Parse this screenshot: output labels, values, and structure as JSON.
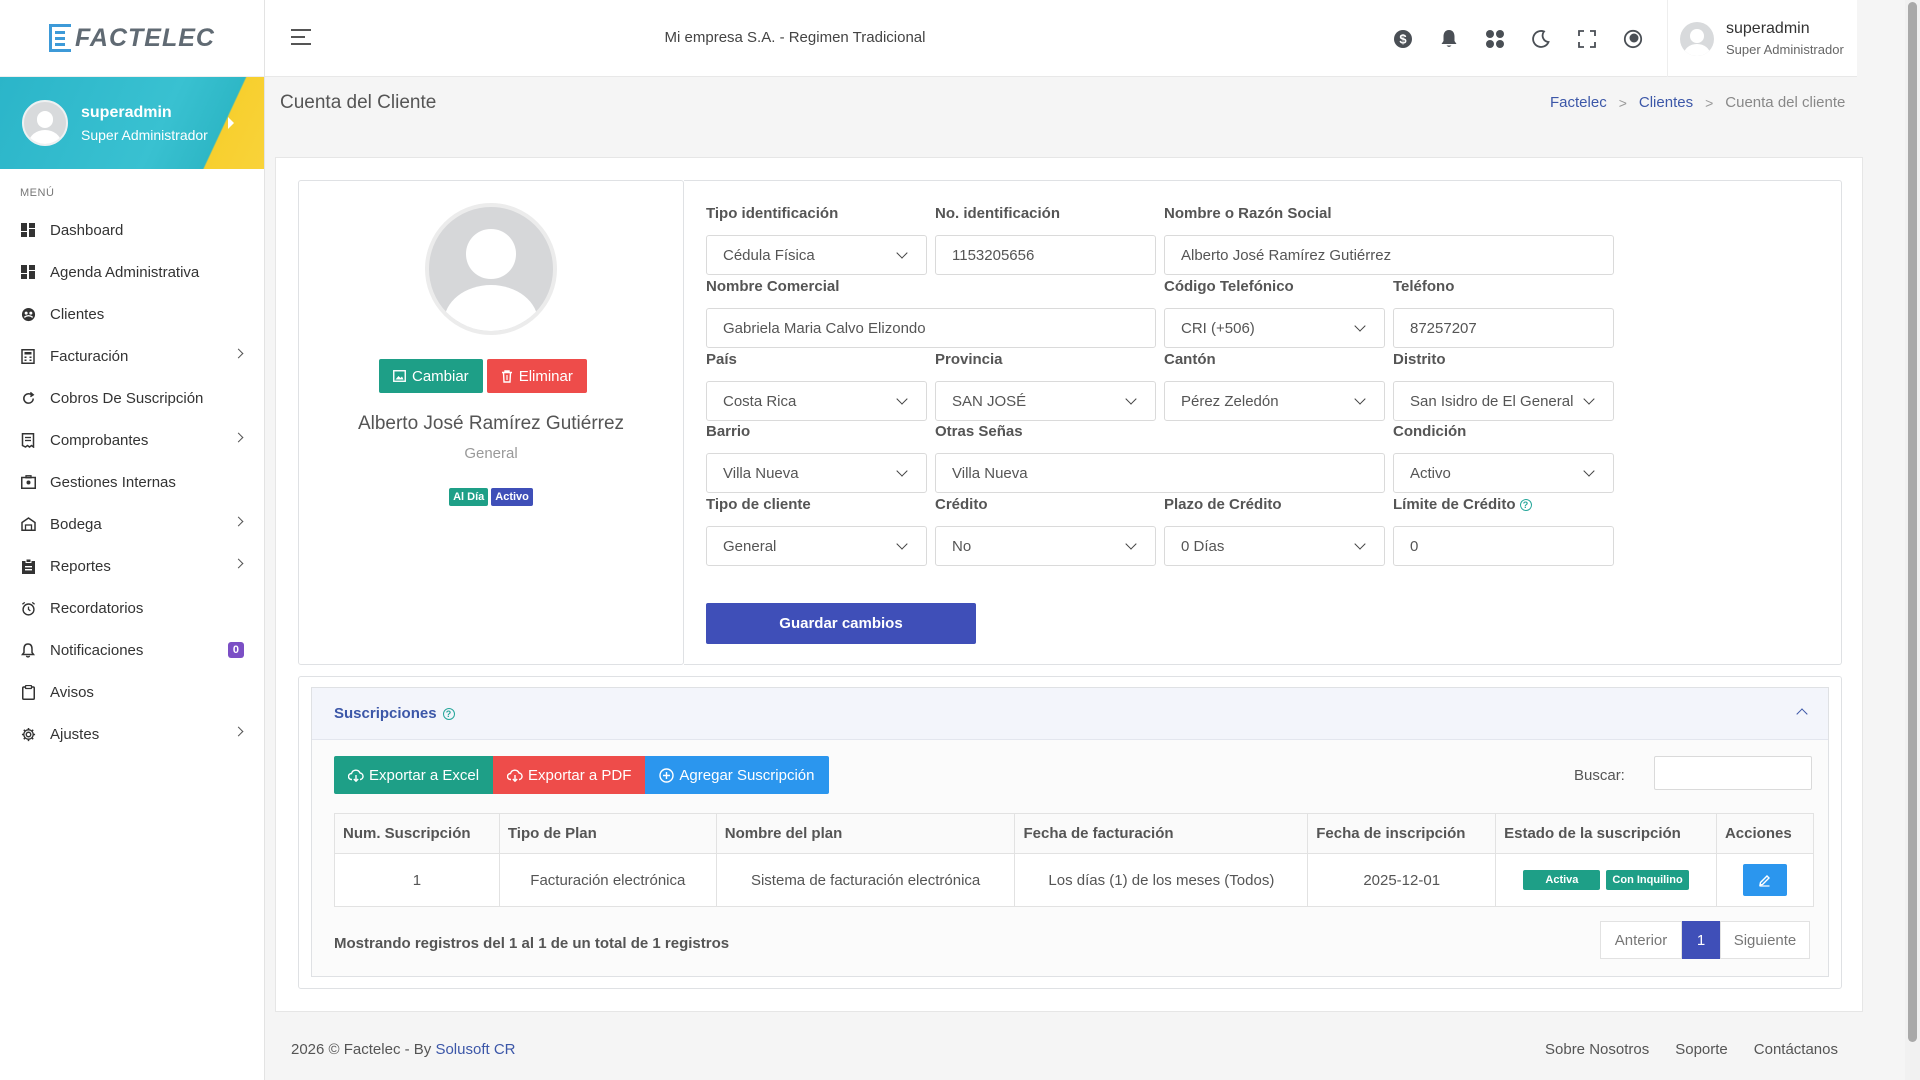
{
  "brand": {
    "name": "FACTELEC"
  },
  "sidebar": {
    "user": {
      "name": "superadmin",
      "role": "Super Administrador"
    },
    "menu_title": "MENÚ",
    "items": [
      {
        "label": "Dashboard",
        "icon": "dashboard-icon"
      },
      {
        "label": "Agenda Administrativa",
        "icon": "dashboard-icon"
      },
      {
        "label": "Clientes",
        "icon": "clients-icon"
      },
      {
        "label": "Facturación",
        "icon": "invoice-icon",
        "submenu": true
      },
      {
        "label": "Cobros De Suscripción",
        "icon": "refresh-icon"
      },
      {
        "label": "Comprobantes",
        "icon": "receipt-icon",
        "submenu": true
      },
      {
        "label": "Gestiones Internas",
        "icon": "internal-icon"
      },
      {
        "label": "Bodega",
        "icon": "warehouse-icon",
        "submenu": true
      },
      {
        "label": "Reportes",
        "icon": "reports-icon",
        "submenu": true
      },
      {
        "label": "Recordatorios",
        "icon": "alarm-icon"
      },
      {
        "label": "Notificaciones",
        "icon": "bell-icon",
        "count": "0"
      },
      {
        "label": "Avisos",
        "icon": "clipboard-icon"
      },
      {
        "label": "Ajustes",
        "icon": "gear-icon",
        "submenu": true
      }
    ]
  },
  "topbar": {
    "company": "Mi empresa S.A. - Regimen Tradicional",
    "user": {
      "name": "superadmin",
      "role": "Super Administrador"
    }
  },
  "page": {
    "title": "Cuenta del Cliente",
    "breadcrumb": {
      "home": "Factelec",
      "parent": "Clientes",
      "current": "Cuenta del cliente"
    }
  },
  "profile": {
    "change_label": "Cambiar",
    "delete_label": "Eliminar",
    "name": "Alberto José Ramírez Gutiérrez",
    "type": "General",
    "badges": [
      {
        "label": "Al Día",
        "color": "#1e9f87"
      },
      {
        "label": "Activo",
        "color": "#3f4fb8"
      }
    ]
  },
  "form": {
    "id_type": {
      "label": "Tipo identificación",
      "value": "Cédula Física"
    },
    "id_number": {
      "label": "No. identificación",
      "value": "1153205656"
    },
    "legal_name": {
      "label": "Nombre o Razón Social",
      "value": "Alberto José Ramírez Gutiérrez"
    },
    "trade_name": {
      "label": "Nombre Comercial",
      "value": "Gabriela Maria Calvo Elizondo"
    },
    "phone_code": {
      "label": "Código Telefónico",
      "value": "CRI (+506)"
    },
    "phone": {
      "label": "Teléfono",
      "value": "87257207"
    },
    "country": {
      "label": "País",
      "value": "Costa Rica"
    },
    "province": {
      "label": "Provincia",
      "value": "SAN JOSÉ"
    },
    "canton": {
      "label": "Cantón",
      "value": "Pérez Zeledón"
    },
    "district": {
      "label": "Distrito",
      "value": "San Isidro de El General"
    },
    "neighborhood": {
      "label": "Barrio",
      "value": "Villa Nueva"
    },
    "other_signs": {
      "label": "Otras Señas",
      "value": "Villa Nueva"
    },
    "condition": {
      "label": "Condición",
      "value": "Activo"
    },
    "client_type": {
      "label": "Tipo de cliente",
      "value": "General"
    },
    "credit": {
      "label": "Crédito",
      "value": "No"
    },
    "credit_term": {
      "label": "Plazo de Crédito",
      "value": "0 Días"
    },
    "credit_limit": {
      "label": "Límite de Crédito",
      "value": "0"
    },
    "save_label": "Guardar cambios"
  },
  "subscriptions": {
    "title": "Suscripciones",
    "export_excel": "Exportar a Excel",
    "export_pdf": "Exportar a PDF",
    "add": "Agregar Suscripción",
    "search_label": "Buscar:",
    "columns": [
      "Num. Suscripción",
      "Tipo de Plan",
      "Nombre del plan",
      "Fecha de facturación",
      "Fecha de inscripción",
      "Estado de la suscripción",
      "Acciones"
    ],
    "rows": [
      {
        "num": "1",
        "plan_type": "Facturación electrónica",
        "plan_name": "Sistema de facturación electrónica",
        "billing": "Los días (1) de los meses (Todos)",
        "enrollment": "2025-12-01",
        "status": "Activa",
        "tenant": "Con Inquilino"
      }
    ],
    "showing": "Mostrando registros del 1 al 1 de un total de 1 registros",
    "pager": {
      "prev": "Anterior",
      "page": "1",
      "next": "Siguiente"
    }
  },
  "footer": {
    "copyright": "2026 © Factelec - By ",
    "company_link": "Solusoft CR",
    "links": [
      "Sobre Nosotros",
      "Soporte",
      "Contáctanos"
    ]
  }
}
